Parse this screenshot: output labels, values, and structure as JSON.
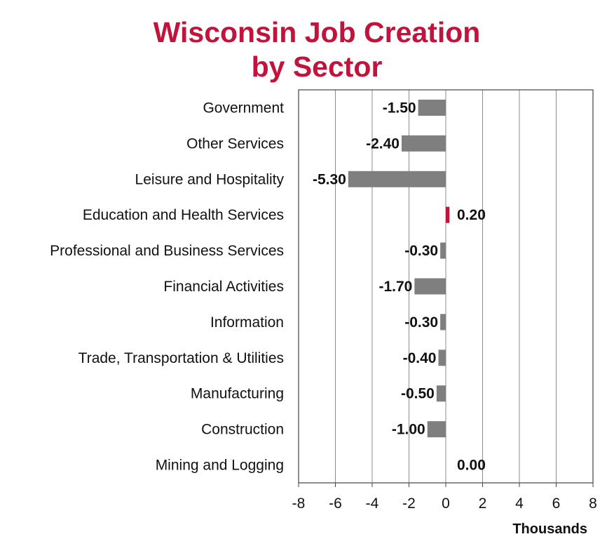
{
  "chart_data": {
    "type": "bar",
    "orientation": "horizontal",
    "title": "Wisconsin Job Creation",
    "subtitle": "by Sector",
    "xlabel": "Thousands",
    "categories": [
      "Government",
      "Other Services",
      "Leisure and Hospitality",
      "Education and Health Services",
      "Professional and Business Services",
      "Financial Activities",
      "Information",
      "Trade, Transportation & Utilities",
      "Manufacturing",
      "Construction",
      "Mining and Logging"
    ],
    "values": [
      -1.5,
      -2.4,
      -5.3,
      0.2,
      -0.3,
      -1.7,
      -0.3,
      -0.4,
      -0.5,
      -1.0,
      0.0
    ],
    "data_labels": [
      "-1.50",
      "-2.40",
      "-5.30",
      "0.20",
      "-0.30",
      "-1.70",
      "-0.30",
      "-0.40",
      "-0.50",
      "-1.00",
      "0.00"
    ],
    "xlim": [
      -8,
      8
    ],
    "xticks": [
      -8,
      -6,
      -4,
      -2,
      0,
      2,
      4,
      6,
      8
    ],
    "grid": "vertical",
    "colors": {
      "negative": "#7f7f7f",
      "positive": "#c0143c",
      "title": "#c0143c"
    }
  }
}
